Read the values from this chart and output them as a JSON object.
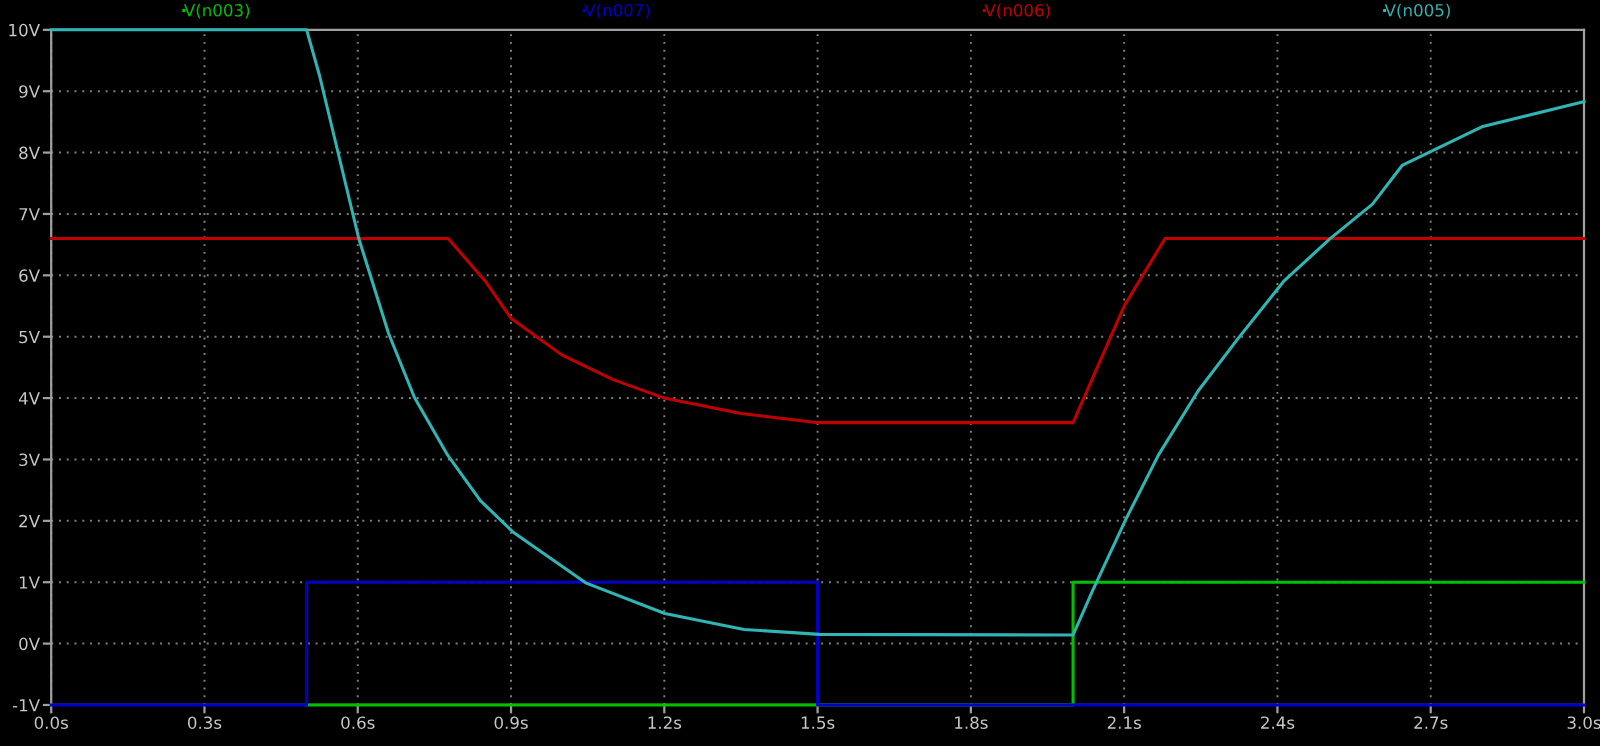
{
  "chart_data": {
    "type": "line",
    "series": [
      {
        "name": "V(n003)",
        "type": "step",
        "color": "#00c000",
        "x": [
          0.5,
          2.0,
          3.0
        ],
        "values": [
          -1,
          1,
          1
        ]
      },
      {
        "name": "V(n007)",
        "type": "step",
        "color": "#0000c8",
        "x": [
          0,
          0.5,
          1.5,
          3.0
        ],
        "values": [
          -1,
          1,
          -1,
          -1
        ]
      },
      {
        "name": "V(n006)",
        "color": "#c00000",
        "x": [
          0,
          0.777,
          0.85,
          0.9,
          1.0,
          1.1,
          1.2,
          1.35,
          1.5,
          2.0,
          2.1,
          2.18,
          3.0
        ],
        "values": [
          6.6,
          6.6,
          5.9,
          5.3,
          4.7,
          4.3,
          4.0,
          3.75,
          3.6,
          3.6,
          5.5,
          6.6,
          6.6
        ]
      },
      {
        "name": "V(n005)",
        "color": "#30b4b4",
        "x": [
          0,
          0.5,
          0.525,
          0.602,
          0.66,
          0.711,
          0.776,
          0.84,
          0.905,
          1.046,
          1.201,
          1.356,
          1.504,
          2.0,
          2.038,
          2.103,
          2.167,
          2.245,
          2.322,
          2.412,
          2.502,
          2.586,
          2.644,
          2.8,
          3.0
        ],
        "values": [
          10,
          10,
          9.26,
          6.6,
          5.06,
          4.01,
          3.07,
          2.33,
          1.81,
          0.99,
          0.49,
          0.23,
          0.15,
          0.14,
          0.86,
          2.02,
          3.07,
          4.12,
          4.96,
          5.9,
          6.59,
          7.16,
          7.79,
          8.42,
          8.83
        ]
      }
    ],
    "xlim": [
      0,
      3.0
    ],
    "ylim": [
      -1,
      10
    ],
    "xticks": [
      {
        "value": 0,
        "label": "0.0s"
      },
      {
        "value": 0.3,
        "label": "0.3s"
      },
      {
        "value": 0.6,
        "label": "0.6s"
      },
      {
        "value": 0.9,
        "label": "0.9s"
      },
      {
        "value": 1.2,
        "label": "1.2s"
      },
      {
        "value": 1.5,
        "label": "1.5s"
      },
      {
        "value": 1.8,
        "label": "1.8s"
      },
      {
        "value": 2.1,
        "label": "2.1s"
      },
      {
        "value": 2.4,
        "label": "2.4s"
      },
      {
        "value": 2.7,
        "label": "2.7s"
      },
      {
        "value": 3.0,
        "label": "3.0s"
      }
    ],
    "yticks": [
      {
        "value": -1,
        "label": "-1V"
      },
      {
        "value": 0,
        "label": "0V"
      },
      {
        "value": 1,
        "label": "1V"
      },
      {
        "value": 2,
        "label": "2V"
      },
      {
        "value": 3,
        "label": "3V"
      },
      {
        "value": 4,
        "label": "4V"
      },
      {
        "value": 5,
        "label": "5V"
      },
      {
        "value": 6,
        "label": "6V"
      },
      {
        "value": 7,
        "label": "7V"
      },
      {
        "value": 8,
        "label": "8V"
      },
      {
        "value": 9,
        "label": "9V"
      },
      {
        "value": 10,
        "label": "10V"
      }
    ],
    "grid": true,
    "legend": "top"
  }
}
